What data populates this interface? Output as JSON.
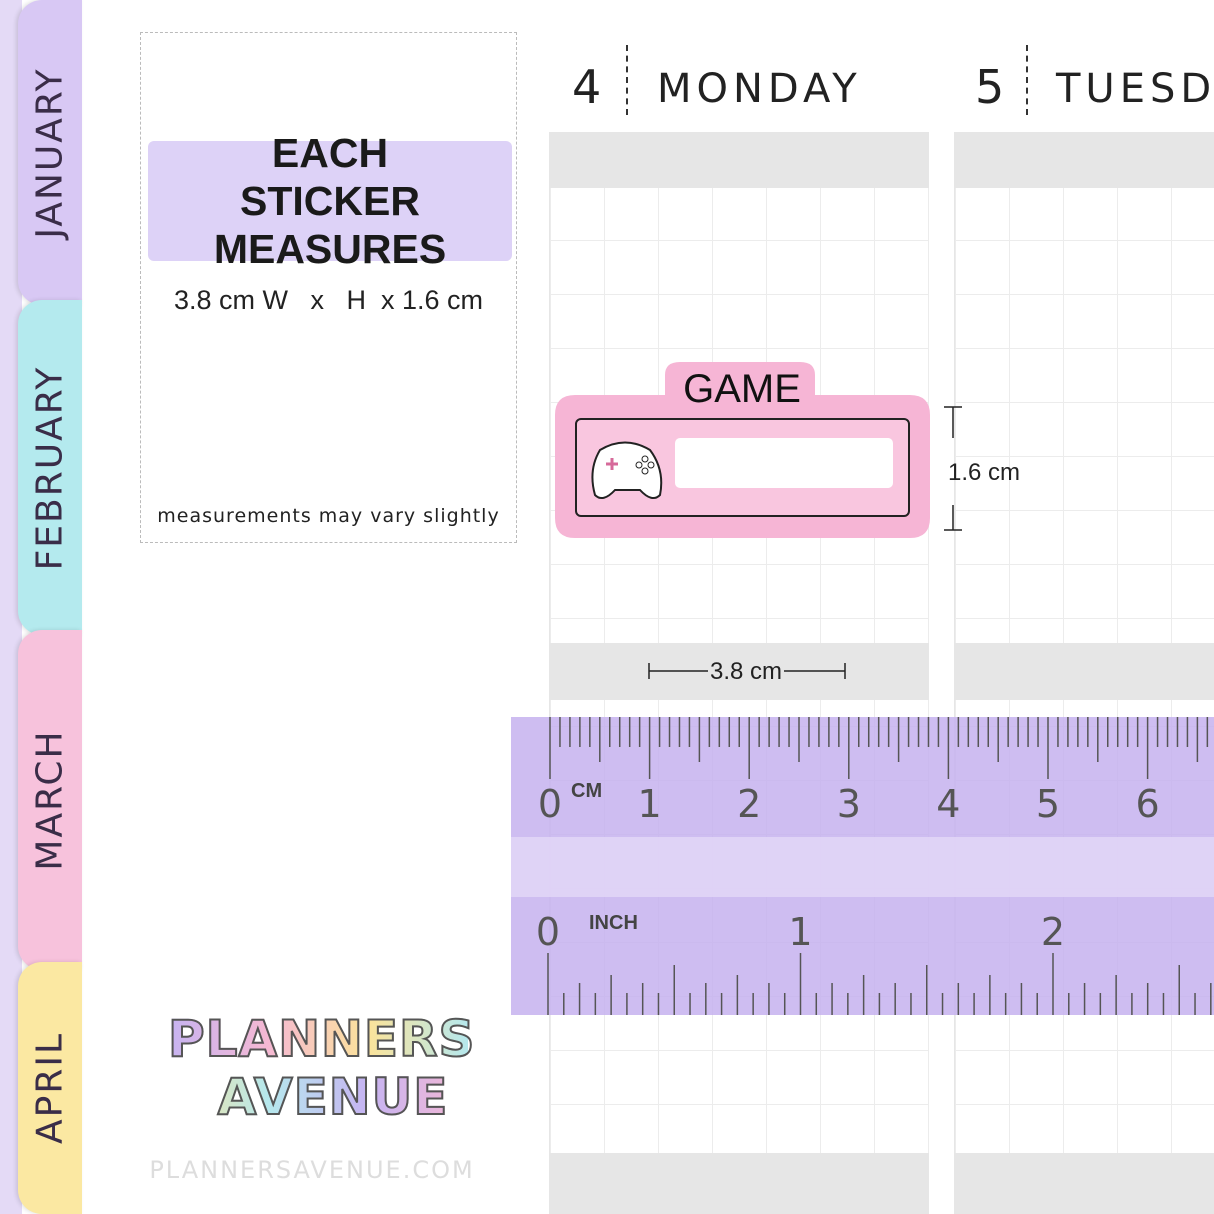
{
  "tabs": [
    "JANUARY",
    "FEBRUARY",
    "MARCH",
    "APRIL"
  ],
  "info": {
    "title": "EACH STICKER MEASURES",
    "size": "3.8 cm W   x   H  x 1.6 cm",
    "note": "measurements may vary slightly"
  },
  "days": [
    {
      "number": "4",
      "name": "MONDAY"
    },
    {
      "number": "5",
      "name": "TUESDAY"
    }
  ],
  "sticker": {
    "label": "GAME",
    "height": "1.6 cm",
    "width": "3.8 cm"
  },
  "ruler": {
    "cm_unit": "CM",
    "cm_labels": [
      "0",
      "1",
      "2",
      "3",
      "4",
      "5",
      "6"
    ],
    "inch_unit": "INCH",
    "inch_labels": [
      "0",
      "1",
      "2"
    ]
  },
  "logo": {
    "line1": "PLANNERS",
    "line2": "AVENUE"
  },
  "footer": "PLANNERSAVENUE.COM"
}
